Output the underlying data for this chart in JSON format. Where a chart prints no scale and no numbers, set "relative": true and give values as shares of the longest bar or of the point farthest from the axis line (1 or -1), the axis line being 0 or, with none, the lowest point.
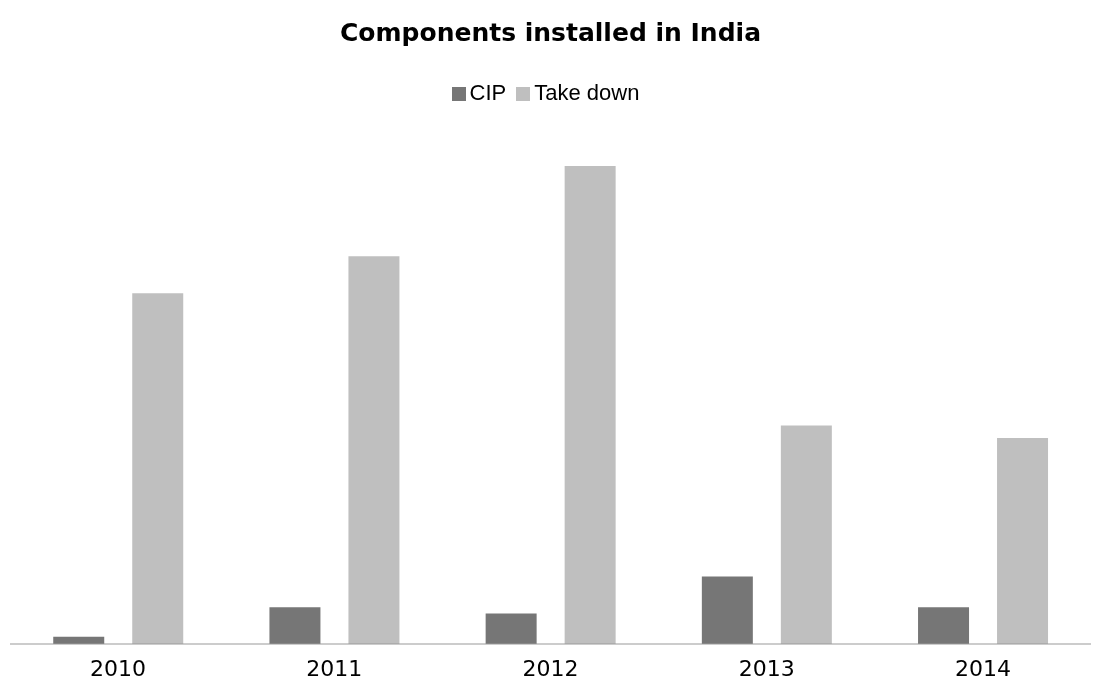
{
  "chart_data": {
    "type": "bar",
    "title": "Components installed in India",
    "categories": [
      "2010",
      "2011",
      "2012",
      "2013",
      "2014"
    ],
    "relative": true,
    "legend": "top",
    "series": [
      {
        "name": "CIP",
        "color": "#767676",
        "values": [
          0.015,
          0.077,
          0.064,
          0.141,
          0.077
        ]
      },
      {
        "name": "Take down",
        "color": "#bfbfbf",
        "values": [
          0.734,
          0.811,
          1,
          0.457,
          0.431
        ]
      }
    ]
  }
}
